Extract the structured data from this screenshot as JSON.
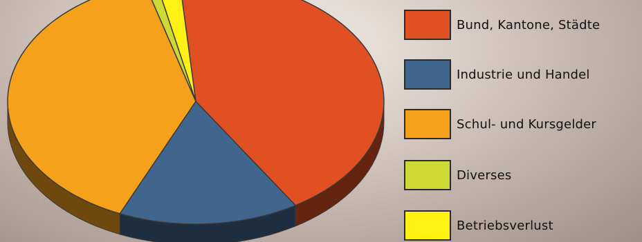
{
  "chart_data": {
    "type": "pie",
    "title": "",
    "series": [
      {
        "label": "Bund, Kantone, Städte",
        "value": 42.5,
        "color": "#E05023"
      },
      {
        "label": "Industrie und Handel",
        "value": 15.5,
        "color": "#41668E"
      },
      {
        "label": "Schul- und Kursgelder",
        "value": 39.0,
        "color": "#F6A11C"
      },
      {
        "label": "Diverses",
        "value": 1.0,
        "color": "#CDDA35"
      },
      {
        "label": "Betriebsverlust",
        "value": 2.0,
        "color": "#FFF114"
      }
    ],
    "legend_position": "right"
  }
}
